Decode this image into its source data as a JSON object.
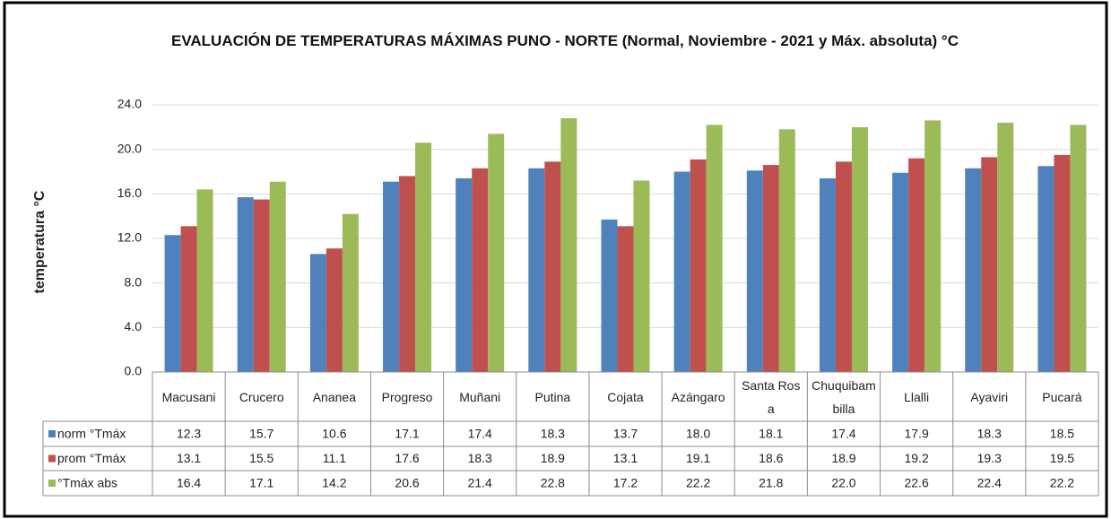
{
  "chart_data": {
    "type": "bar",
    "title": "EVALUACIÓN DE TEMPERATURAS MÁXIMAS PUNO - NORTE (Normal, Noviembre - 2021 y Máx. absoluta) °C",
    "y_label": "temperatura °C",
    "categories": [
      "Macusani",
      "Crucero",
      "Ananea",
      "Progreso",
      "Muñani",
      "Putina",
      "Cojata",
      "Azángaro",
      "Santa Rosa",
      "Chuquibambilla",
      "Llalli",
      "Ayaviri",
      "Pucará"
    ],
    "series": [
      {
        "name": "norm °Tmáx",
        "color": "#4f81bd",
        "values": [
          12.3,
          15.7,
          10.6,
          17.1,
          17.4,
          18.3,
          13.7,
          18.0,
          18.1,
          17.4,
          17.9,
          18.3,
          18.5
        ],
        "value_labels": [
          "12.3",
          "15.7",
          "10.6",
          "17.1",
          "17.4",
          "18.3",
          "13.7",
          "18.0",
          "18.1",
          "17.4",
          "17.9",
          "18.3",
          "18.5"
        ]
      },
      {
        "name": "prom °Tmáx",
        "color": "#c0504d",
        "values": [
          13.1,
          15.5,
          11.1,
          17.6,
          18.3,
          18.9,
          13.1,
          19.1,
          18.6,
          18.9,
          19.2,
          19.3,
          19.5
        ],
        "value_labels": [
          "13.1",
          "15.5",
          "11.1",
          "17.6",
          "18.3",
          "18.9",
          "13.1",
          "19.1",
          "18.6",
          "18.9",
          "19.2",
          "19.3",
          "19.5"
        ]
      },
      {
        "name": "°Tmáx abs",
        "color": "#9bbb59",
        "values": [
          16.4,
          17.1,
          14.2,
          20.6,
          21.4,
          22.8,
          17.2,
          22.2,
          21.8,
          22.0,
          22.6,
          22.4,
          22.2
        ],
        "value_labels": [
          "16.4",
          "17.1",
          "14.2",
          "20.6",
          "21.4",
          "22.8",
          "17.2",
          "22.2",
          "21.8",
          "22.0",
          "22.6",
          "22.4",
          "22.2"
        ]
      }
    ],
    "ylim": [
      0,
      24
    ],
    "yticks": [
      {
        "value": 0,
        "label": "0.0"
      },
      {
        "value": 4,
        "label": "4.0"
      },
      {
        "value": 8,
        "label": "8.0"
      },
      {
        "value": 12,
        "label": "12.0"
      },
      {
        "value": 16,
        "label": "16.0"
      },
      {
        "value": 20,
        "label": "20.0"
      },
      {
        "value": 24,
        "label": "24.0"
      }
    ],
    "grid": true
  }
}
